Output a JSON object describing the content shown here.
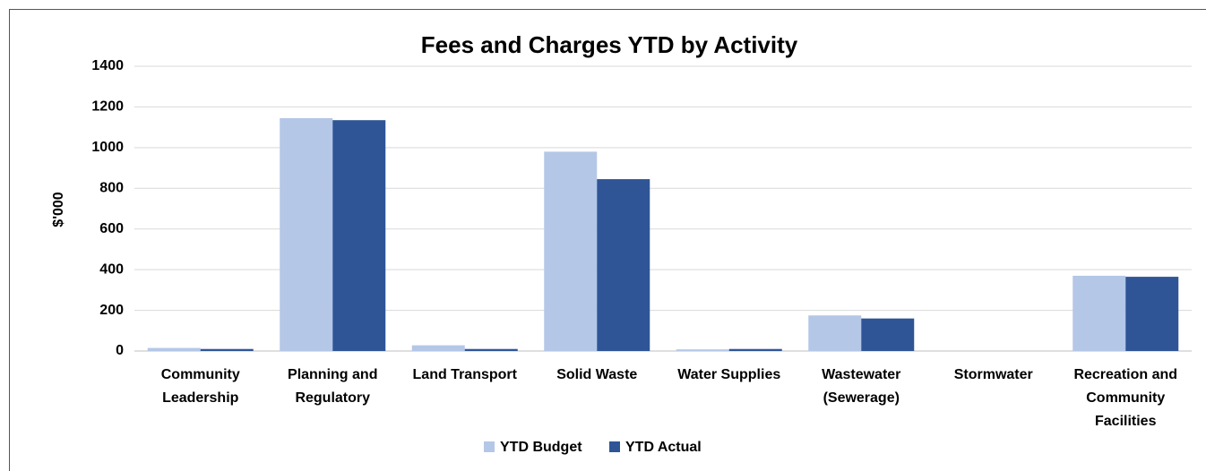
{
  "chart_data": {
    "type": "bar",
    "title": "Fees and Charges YTD by Activity",
    "ylabel": "$'000",
    "categories": [
      "Community Leadership",
      "Planning and Regulatory",
      "Land Transport",
      "Solid Waste",
      "Water Supplies",
      "Wastewater (Sewerage)",
      "Stormwater",
      "Recreation and Community Facilities"
    ],
    "series": [
      {
        "name": "YTD Budget",
        "color": "#b4c7e7",
        "values": [
          15,
          1145,
          28,
          980,
          8,
          175,
          0,
          370
        ]
      },
      {
        "name": "YTD Actual",
        "color": "#2f5597",
        "values": [
          10,
          1135,
          10,
          845,
          10,
          160,
          0,
          365
        ]
      }
    ],
    "ylim": [
      0,
      1400
    ],
    "yticks": [
      0,
      200,
      400,
      600,
      800,
      1000,
      1200,
      1400
    ],
    "grid": true,
    "legend": "bottom"
  }
}
